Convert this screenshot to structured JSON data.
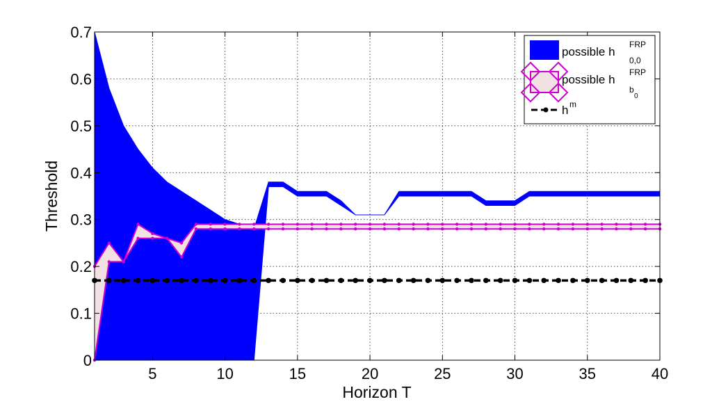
{
  "chart_data": {
    "type": "area",
    "xlabel": "Horizon T",
    "ylabel": "Threshold",
    "xlim": [
      1,
      40
    ],
    "ylim": [
      0,
      0.7
    ],
    "xticks": [
      5,
      10,
      15,
      20,
      25,
      30,
      35,
      40
    ],
    "yticks": [
      0,
      0.1,
      0.2,
      0.3,
      0.4,
      0.5,
      0.6,
      0.7
    ],
    "xtick_labels": [
      "5",
      "10",
      "15",
      "20",
      "25",
      "30",
      "35",
      "40"
    ],
    "ytick_labels": [
      "0",
      "0.1",
      "0.2",
      "0.3",
      "0.4",
      "0.5",
      "0.6",
      "0.7"
    ],
    "grid": true,
    "legend_position": "top-right",
    "x": [
      1,
      2,
      3,
      4,
      5,
      6,
      7,
      8,
      9,
      10,
      11,
      12,
      13,
      14,
      15,
      16,
      17,
      18,
      19,
      20,
      21,
      22,
      23,
      24,
      25,
      26,
      27,
      28,
      29,
      30,
      31,
      32,
      33,
      34,
      35,
      36,
      37,
      38,
      39,
      40
    ],
    "series": [
      {
        "name": "possible h",
        "name_sup": "FRP",
        "name_sub": "0,0",
        "kind": "band",
        "color": "#0000ff",
        "upper": [
          0.7,
          0.58,
          0.5,
          0.45,
          0.41,
          0.38,
          0.36,
          0.34,
          0.32,
          0.3,
          0.29,
          0.28,
          0.38,
          0.38,
          0.36,
          0.36,
          0.36,
          0.34,
          0.31,
          0.31,
          0.31,
          0.36,
          0.36,
          0.36,
          0.36,
          0.36,
          0.36,
          0.34,
          0.34,
          0.34,
          0.36,
          0.36,
          0.36,
          0.36,
          0.36,
          0.36,
          0.36,
          0.36,
          0.36,
          0.36
        ],
        "lower": [
          0.0,
          0.0,
          0.0,
          0.0,
          0.0,
          0.0,
          0.0,
          0.0,
          0.0,
          0.0,
          0.0,
          0.0,
          0.37,
          0.37,
          0.35,
          0.35,
          0.35,
          0.33,
          0.31,
          0.31,
          0.31,
          0.35,
          0.35,
          0.35,
          0.35,
          0.35,
          0.35,
          0.33,
          0.33,
          0.33,
          0.35,
          0.35,
          0.35,
          0.35,
          0.35,
          0.35,
          0.35,
          0.35,
          0.35,
          0.35
        ]
      },
      {
        "name": "possible h",
        "name_sup": "FRP",
        "name_sub": "b",
        "name_subsub": "0",
        "kind": "band",
        "fill": "#f2e1e3",
        "color": "#cc00cc",
        "upper": [
          0.2,
          0.25,
          0.21,
          0.29,
          0.27,
          0.26,
          0.25,
          0.29,
          0.29,
          0.29,
          0.29,
          0.29,
          0.29,
          0.29,
          0.29,
          0.29,
          0.29,
          0.29,
          0.29,
          0.29,
          0.29,
          0.29,
          0.29,
          0.29,
          0.29,
          0.29,
          0.29,
          0.29,
          0.29,
          0.29,
          0.29,
          0.29,
          0.29,
          0.29,
          0.29,
          0.29,
          0.29,
          0.29,
          0.29,
          0.29
        ],
        "lower": [
          0.0,
          0.21,
          0.21,
          0.26,
          0.26,
          0.26,
          0.22,
          0.28,
          0.28,
          0.28,
          0.28,
          0.28,
          0.28,
          0.28,
          0.28,
          0.28,
          0.28,
          0.28,
          0.28,
          0.28,
          0.28,
          0.28,
          0.28,
          0.28,
          0.28,
          0.28,
          0.28,
          0.28,
          0.28,
          0.28,
          0.28,
          0.28,
          0.28,
          0.28,
          0.28,
          0.28,
          0.28,
          0.28,
          0.28,
          0.28
        ]
      },
      {
        "name": "h",
        "name_sup": "m",
        "kind": "line",
        "color": "#000000",
        "dash": true,
        "values": [
          0.17,
          0.17,
          0.17,
          0.17,
          0.17,
          0.17,
          0.17,
          0.17,
          0.17,
          0.17,
          0.17,
          0.17,
          0.17,
          0.17,
          0.17,
          0.17,
          0.17,
          0.17,
          0.17,
          0.17,
          0.17,
          0.17,
          0.17,
          0.17,
          0.17,
          0.17,
          0.17,
          0.17,
          0.17,
          0.17,
          0.17,
          0.17,
          0.17,
          0.17,
          0.17,
          0.17,
          0.17,
          0.17,
          0.17,
          0.17
        ]
      }
    ]
  }
}
